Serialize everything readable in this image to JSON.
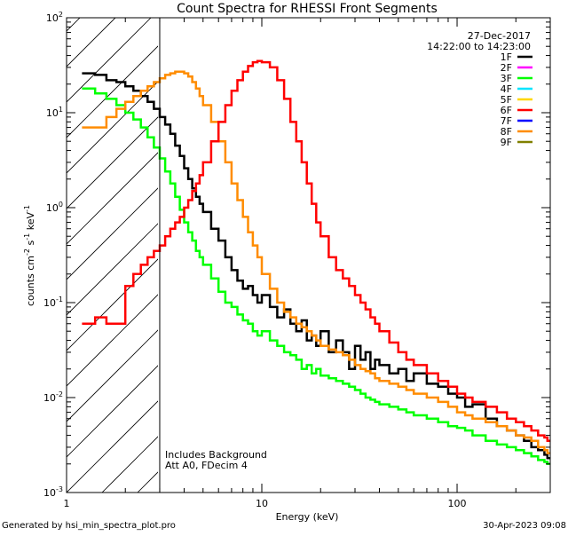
{
  "title": "Count Spectra for RHESSI Front Segments",
  "date": "27-Dec-2017",
  "time_range": "14:22:00 to 14:23:00",
  "footer_left": "Generated by hsi_min_spectra_plot.pro",
  "footer_right": "30-Apr-2023 09:08",
  "annotation_line1": "Includes Background",
  "annotation_line2": "Att A0, FDecim 4",
  "chart_data": {
    "type": "line",
    "xscale": "log",
    "yscale": "log",
    "xlim": [
      1,
      300
    ],
    "ylim": [
      0.001,
      100
    ],
    "xlabel": "Energy (keV)",
    "ylabel_parts": [
      "counts cm",
      "-2",
      " s",
      "-1",
      " keV",
      "-1"
    ],
    "x_ticks": [
      {
        "v": 1,
        "label": "1"
      },
      {
        "v": 10,
        "label": "10"
      },
      {
        "v": 100,
        "label": "100"
      }
    ],
    "y_ticks": [
      {
        "v": 0.001,
        "base": "10",
        "exp": "-3"
      },
      {
        "v": 0.01,
        "base": "10",
        "exp": "-2"
      },
      {
        "v": 0.1,
        "base": "10",
        "exp": "-1"
      },
      {
        "v": 1,
        "base": "10",
        "exp": "0"
      },
      {
        "v": 10,
        "base": "10",
        "exp": "1"
      },
      {
        "v": 100,
        "base": "10",
        "exp": "2"
      }
    ],
    "shaded_region": {
      "x_from": 1,
      "x_to": 3,
      "pattern": "diagonal-hatch"
    },
    "legend": [
      {
        "name": "1F",
        "color": "#000000"
      },
      {
        "name": "2F",
        "color": "#ff00ff"
      },
      {
        "name": "3F",
        "color": "#00ff00"
      },
      {
        "name": "4F",
        "color": "#00e5ff"
      },
      {
        "name": "5F",
        "color": "#ffd700"
      },
      {
        "name": "6F",
        "color": "#ff0000"
      },
      {
        "name": "7F",
        "color": "#0000ff"
      },
      {
        "name": "8F",
        "color": "#ff8c00"
      },
      {
        "name": "9F",
        "color": "#808000"
      }
    ],
    "series": [
      {
        "name": "1F",
        "color": "#000000",
        "x": [
          1.2,
          1.4,
          1.6,
          1.8,
          2.0,
          2.2,
          2.4,
          2.6,
          2.8,
          3.0,
          3.2,
          3.4,
          3.6,
          3.8,
          4.0,
          4.2,
          4.4,
          4.6,
          4.8,
          5.0,
          5.5,
          6.0,
          6.5,
          7.0,
          7.5,
          8.0,
          8.5,
          9.0,
          9.5,
          10,
          11,
          12,
          13,
          14,
          15,
          16,
          17,
          18,
          19,
          20,
          22,
          24,
          26,
          28,
          30,
          32,
          34,
          36,
          38,
          40,
          45,
          50,
          55,
          60,
          70,
          80,
          90,
          100,
          110,
          120,
          140,
          160,
          180,
          200,
          220,
          240,
          260,
          280,
          290
        ],
        "y": [
          26,
          25,
          22,
          21,
          19,
          17,
          15,
          13,
          11,
          9,
          7.5,
          6,
          4.5,
          3.5,
          2.6,
          2.0,
          1.6,
          1.3,
          1.1,
          0.9,
          0.6,
          0.45,
          0.3,
          0.22,
          0.17,
          0.14,
          0.15,
          0.12,
          0.1,
          0.12,
          0.09,
          0.07,
          0.085,
          0.06,
          0.05,
          0.065,
          0.04,
          0.045,
          0.035,
          0.05,
          0.03,
          0.04,
          0.03,
          0.02,
          0.035,
          0.025,
          0.03,
          0.02,
          0.025,
          0.022,
          0.018,
          0.02,
          0.015,
          0.018,
          0.014,
          0.013,
          0.011,
          0.01,
          0.008,
          0.0085,
          0.006,
          0.005,
          0.0045,
          0.004,
          0.0035,
          0.003,
          0.0028,
          0.0025,
          0.0023
        ]
      },
      {
        "name": "3F",
        "color": "#00ff00",
        "x": [
          1.2,
          1.4,
          1.6,
          1.8,
          2.0,
          2.2,
          2.4,
          2.6,
          2.8,
          3.0,
          3.2,
          3.4,
          3.6,
          3.8,
          4.0,
          4.2,
          4.4,
          4.6,
          4.8,
          5.0,
          5.5,
          6.0,
          6.5,
          7.0,
          7.5,
          8.0,
          8.5,
          9.0,
          9.5,
          10,
          11,
          12,
          13,
          14,
          15,
          16,
          17,
          18,
          19,
          20,
          22,
          24,
          26,
          28,
          30,
          32,
          34,
          36,
          38,
          40,
          45,
          50,
          55,
          60,
          70,
          80,
          90,
          100,
          110,
          120,
          140,
          160,
          180,
          200,
          220,
          240,
          260,
          280,
          290
        ],
        "y": [
          18,
          16,
          14,
          12,
          10,
          8.5,
          7,
          5.5,
          4.3,
          3.3,
          2.4,
          1.8,
          1.3,
          0.95,
          0.7,
          0.55,
          0.45,
          0.35,
          0.3,
          0.25,
          0.18,
          0.13,
          0.1,
          0.09,
          0.075,
          0.065,
          0.06,
          0.05,
          0.045,
          0.05,
          0.04,
          0.035,
          0.03,
          0.028,
          0.025,
          0.02,
          0.022,
          0.018,
          0.02,
          0.017,
          0.016,
          0.015,
          0.014,
          0.013,
          0.012,
          0.011,
          0.01,
          0.0095,
          0.009,
          0.0085,
          0.008,
          0.0075,
          0.007,
          0.0065,
          0.006,
          0.0055,
          0.005,
          0.0048,
          0.0045,
          0.004,
          0.0035,
          0.0032,
          0.003,
          0.0028,
          0.0026,
          0.0024,
          0.0022,
          0.0021,
          0.002
        ]
      },
      {
        "name": "8F",
        "color": "#ff8c00",
        "x": [
          1.2,
          1.4,
          1.6,
          1.8,
          2.0,
          2.2,
          2.4,
          2.6,
          2.8,
          3.0,
          3.2,
          3.4,
          3.6,
          3.8,
          4.0,
          4.2,
          4.4,
          4.6,
          4.8,
          5.0,
          5.5,
          6.0,
          6.5,
          7.0,
          7.5,
          8.0,
          8.5,
          9.0,
          9.5,
          10,
          11,
          12,
          13,
          14,
          15,
          16,
          17,
          18,
          19,
          20,
          22,
          24,
          26,
          28,
          30,
          32,
          34,
          36,
          38,
          40,
          45,
          50,
          55,
          60,
          70,
          80,
          90,
          100,
          110,
          120,
          140,
          160,
          180,
          200,
          220,
          240,
          260,
          280,
          290
        ],
        "y": [
          7,
          7,
          9,
          11,
          13,
          15,
          17,
          19,
          21,
          23,
          25,
          26,
          27,
          27,
          26,
          24,
          21,
          18,
          15,
          12,
          8,
          5,
          3,
          1.8,
          1.2,
          0.8,
          0.55,
          0.4,
          0.3,
          0.2,
          0.14,
          0.1,
          0.08,
          0.07,
          0.06,
          0.055,
          0.05,
          0.045,
          0.04,
          0.035,
          0.032,
          0.03,
          0.028,
          0.025,
          0.022,
          0.02,
          0.019,
          0.018,
          0.016,
          0.015,
          0.014,
          0.013,
          0.012,
          0.011,
          0.01,
          0.009,
          0.008,
          0.007,
          0.0065,
          0.006,
          0.0055,
          0.005,
          0.0045,
          0.004,
          0.0038,
          0.0035,
          0.003,
          0.0028,
          0.0026
        ]
      },
      {
        "name": "6F",
        "color": "#ff0000",
        "x": [
          1.2,
          1.4,
          1.6,
          1.8,
          2.0,
          2.2,
          2.4,
          2.6,
          2.8,
          3.0,
          3.2,
          3.4,
          3.6,
          3.8,
          4.0,
          4.2,
          4.4,
          4.6,
          4.8,
          5.0,
          5.5,
          6.0,
          6.5,
          7.0,
          7.5,
          8.0,
          8.5,
          9.0,
          9.5,
          10,
          11,
          12,
          13,
          14,
          15,
          16,
          17,
          18,
          19,
          20,
          22,
          24,
          26,
          28,
          30,
          32,
          34,
          36,
          38,
          40,
          45,
          50,
          55,
          60,
          70,
          80,
          90,
          100,
          110,
          120,
          140,
          160,
          180,
          200,
          220,
          240,
          260,
          280,
          290
        ],
        "y": [
          0.06,
          0.07,
          0.06,
          0.06,
          0.15,
          0.2,
          0.25,
          0.3,
          0.35,
          0.4,
          0.5,
          0.6,
          0.7,
          0.8,
          1.0,
          1.2,
          1.5,
          1.8,
          2.2,
          3,
          5,
          8,
          12,
          17,
          22,
          27,
          31,
          34,
          35,
          34,
          30,
          22,
          14,
          8,
          5,
          3,
          1.8,
          1.1,
          0.7,
          0.5,
          0.3,
          0.22,
          0.18,
          0.15,
          0.12,
          0.1,
          0.085,
          0.07,
          0.06,
          0.05,
          0.038,
          0.03,
          0.025,
          0.022,
          0.018,
          0.015,
          0.013,
          0.011,
          0.01,
          0.009,
          0.008,
          0.007,
          0.006,
          0.0055,
          0.005,
          0.0045,
          0.004,
          0.0038,
          0.0035
        ]
      }
    ]
  }
}
